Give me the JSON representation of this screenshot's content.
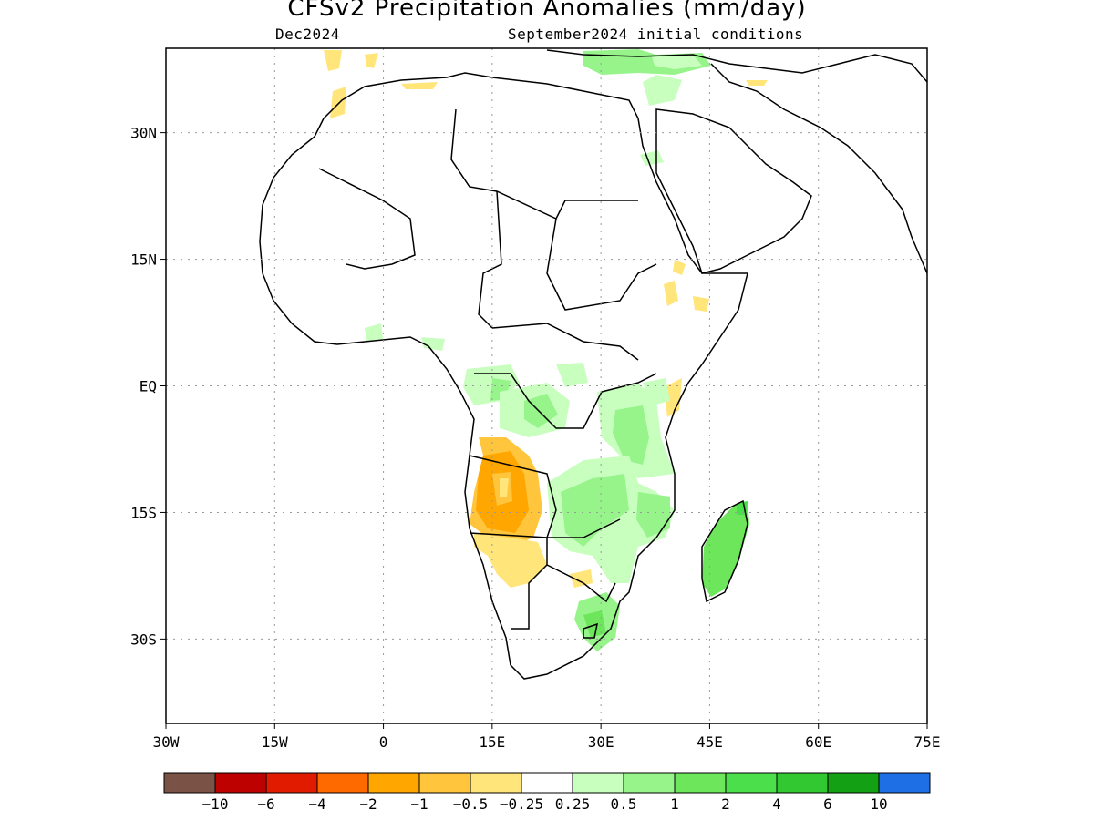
{
  "title": "CFSv2 Precipitation Anomalies (mm/day)",
  "subtitle_left": "Dec2024",
  "subtitle_right": "September2024 initial conditions",
  "map": {
    "lon_range": [
      -30,
      75
    ],
    "lat_range": [
      -40,
      40
    ],
    "lon_ticks": [
      {
        "value": -30,
        "label": "30W"
      },
      {
        "value": -15,
        "label": "15W"
      },
      {
        "value": 0,
        "label": "0"
      },
      {
        "value": 15,
        "label": "15E"
      },
      {
        "value": 30,
        "label": "30E"
      },
      {
        "value": 45,
        "label": "45E"
      },
      {
        "value": 60,
        "label": "60E"
      },
      {
        "value": 75,
        "label": "75E"
      }
    ],
    "lat_ticks": [
      {
        "value": 30,
        "label": "30N"
      },
      {
        "value": 15,
        "label": "15N"
      },
      {
        "value": 0,
        "label": "EQ"
      },
      {
        "value": -15,
        "label": "15S"
      },
      {
        "value": -30,
        "label": "30S"
      }
    ],
    "grid": "dotted"
  },
  "colorbar": {
    "colors": [
      "#7b5246",
      "#bd0000",
      "#e01b00",
      "#ff6a00",
      "#ffa600",
      "#ffc63d",
      "#ffe57a",
      "#ffffff",
      "#c8ffbf",
      "#96f48a",
      "#6de65c",
      "#4bdf4b",
      "#32c832",
      "#14a014",
      "#1e6ee6"
    ],
    "labels": [
      "−10",
      "−6",
      "−4",
      "−2",
      "−1",
      "−0.5",
      "−0.25",
      "0.25",
      "0.5",
      "1",
      "2",
      "4",
      "6",
      "10"
    ]
  },
  "anomaly_regions": [
    {
      "name": "angola-dry-core",
      "level": "-1 to -2",
      "color": "#ffa600"
    },
    {
      "name": "namibia-dry",
      "level": "-0.25 to -0.5",
      "color": "#ffe57a"
    },
    {
      "name": "east-africa-wet",
      "level": "0.5 to 1",
      "color": "#96f48a"
    },
    {
      "name": "madagascar-wet",
      "level": "1 to 2",
      "color": "#6de65c"
    }
  ]
}
